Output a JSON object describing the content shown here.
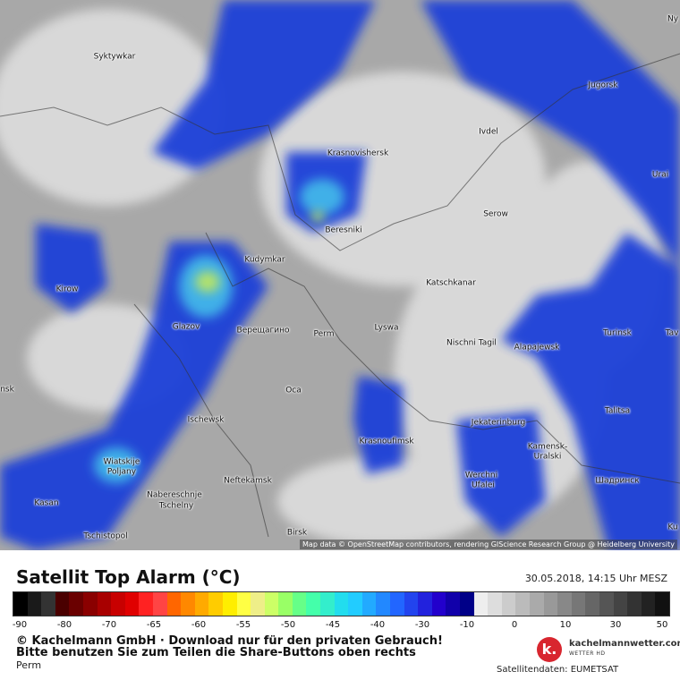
{
  "map": {
    "cities": [
      "Ny",
      "Syktywkar",
      "Jugorsk",
      "Ivdel",
      "Krasnovishersk",
      "Urai",
      "Serow",
      "Beresniki",
      "Kudymkar",
      "Kirow",
      "Katschkanar",
      "Glazov",
      "Верещагино",
      "Perm",
      "Lyswa",
      "Nischni Tagil",
      "Alapajewsk",
      "Turinsk",
      "Tav",
      "nsk",
      "Oca",
      "Talitsa",
      "Ischewsk",
      "Jekaterinburg",
      "Krasnoufimsk",
      "Kamensk-",
      "Uralski",
      "Wiatskije",
      "Poljany",
      "Neftekamsk",
      "Werchni",
      "Ufalei",
      "Шадринск",
      "Nabereschnje",
      "Tschelny",
      "Kasan",
      "Birsk",
      "Tschistopol",
      "Ku"
    ],
    "attribution": "Map data © OpenStreetMap contributors, rendering GIScience Research Group @ Heidelberg University"
  },
  "legend": {
    "title": "Satellit Top Alarm (°C)",
    "date": "30.05.2018, 14:15 Uhr MESZ",
    "tick_labels": [
      "-90",
      "-80",
      "-70",
      "-65",
      "-60",
      "-55",
      "-50",
      "-45",
      "-40",
      "-30",
      "-10",
      "0",
      "10",
      "30",
      "50"
    ]
  },
  "footer": {
    "copyright": "© Kachelmann GmbH · Download nur für den privaten Gebrauch!",
    "share": "Bitte benutzen Sie zum Teilen die Share-Buttons oben rechts",
    "location": "Perm",
    "logo": "kachelmannwetter.com",
    "logo_sub": "WETTER HD",
    "source": "Satellitendaten: EUMETSAT"
  }
}
